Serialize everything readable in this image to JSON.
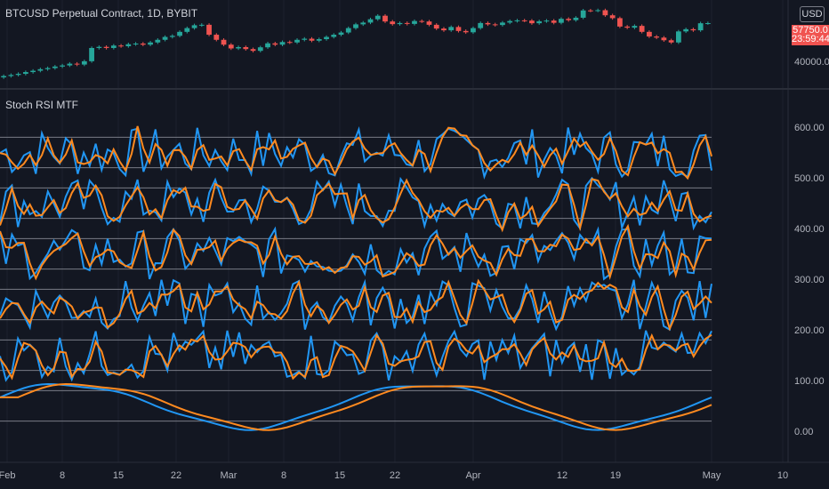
{
  "header": {
    "symbol_title": "BTCUSD Perpetual Contract, 1D, BYBIT",
    "currency_button": "USD"
  },
  "price_pane": {
    "last_price": "57750.0",
    "countdown": "23:59:44",
    "axis_label": "40000.0",
    "colors": {
      "up": "#26a69a",
      "down": "#ef5350"
    },
    "candles": [
      {
        "o": 33200,
        "c": 33800
      },
      {
        "o": 33800,
        "c": 34300
      },
      {
        "o": 34300,
        "c": 34800
      },
      {
        "o": 34800,
        "c": 35600
      },
      {
        "o": 35600,
        "c": 36200
      },
      {
        "o": 36200,
        "c": 36900
      },
      {
        "o": 36900,
        "c": 37400
      },
      {
        "o": 37400,
        "c": 38100
      },
      {
        "o": 38100,
        "c": 38600
      },
      {
        "o": 38600,
        "c": 39400
      },
      {
        "o": 39400,
        "c": 39000
      },
      {
        "o": 39000,
        "c": 40500
      },
      {
        "o": 40500,
        "c": 46500
      },
      {
        "o": 46500,
        "c": 47000
      },
      {
        "o": 47000,
        "c": 46500
      },
      {
        "o": 46500,
        "c": 47600
      },
      {
        "o": 47600,
        "c": 47300
      },
      {
        "o": 47300,
        "c": 48200
      },
      {
        "o": 48200,
        "c": 48500
      },
      {
        "o": 48500,
        "c": 48000
      },
      {
        "o": 48000,
        "c": 49000
      },
      {
        "o": 49000,
        "c": 50200
      },
      {
        "o": 50200,
        "c": 51500
      },
      {
        "o": 51500,
        "c": 52000
      },
      {
        "o": 52000,
        "c": 53800
      },
      {
        "o": 53800,
        "c": 55500
      },
      {
        "o": 55500,
        "c": 56800
      },
      {
        "o": 56800,
        "c": 57000
      },
      {
        "o": 57000,
        "c": 52500
      },
      {
        "o": 52500,
        "c": 50200
      },
      {
        "o": 50200,
        "c": 48000
      },
      {
        "o": 48000,
        "c": 46300
      },
      {
        "o": 46300,
        "c": 46900
      },
      {
        "o": 46900,
        "c": 46000
      },
      {
        "o": 46000,
        "c": 45200
      },
      {
        "o": 45200,
        "c": 46800
      },
      {
        "o": 46800,
        "c": 48600
      },
      {
        "o": 48600,
        "c": 48000
      },
      {
        "o": 48000,
        "c": 49200
      },
      {
        "o": 49200,
        "c": 49000
      },
      {
        "o": 49000,
        "c": 50200
      },
      {
        "o": 50200,
        "c": 50700
      },
      {
        "o": 50700,
        "c": 49800
      },
      {
        "o": 49800,
        "c": 50500
      },
      {
        "o": 50500,
        "c": 51500
      },
      {
        "o": 51500,
        "c": 52500
      },
      {
        "o": 52500,
        "c": 53500
      },
      {
        "o": 53500,
        "c": 55500
      },
      {
        "o": 55500,
        "c": 57200
      },
      {
        "o": 57200,
        "c": 58000
      },
      {
        "o": 58000,
        "c": 59500
      },
      {
        "o": 59500,
        "c": 61100
      },
      {
        "o": 61100,
        "c": 58500
      },
      {
        "o": 58500,
        "c": 57300
      },
      {
        "o": 57300,
        "c": 57800
      },
      {
        "o": 57800,
        "c": 57400
      },
      {
        "o": 57400,
        "c": 58700
      },
      {
        "o": 58700,
        "c": 58500
      },
      {
        "o": 58500,
        "c": 57000
      },
      {
        "o": 57000,
        "c": 55300
      },
      {
        "o": 55300,
        "c": 54500
      },
      {
        "o": 54500,
        "c": 56000
      },
      {
        "o": 56000,
        "c": 54200
      },
      {
        "o": 54200,
        "c": 53600
      },
      {
        "o": 53600,
        "c": 55500
      },
      {
        "o": 55500,
        "c": 57800
      },
      {
        "o": 57800,
        "c": 57200
      },
      {
        "o": 57200,
        "c": 56900
      },
      {
        "o": 56900,
        "c": 58000
      },
      {
        "o": 58000,
        "c": 58700
      },
      {
        "o": 58700,
        "c": 59000
      },
      {
        "o": 59000,
        "c": 58900
      },
      {
        "o": 58900,
        "c": 57700
      },
      {
        "o": 57700,
        "c": 58600
      },
      {
        "o": 58600,
        "c": 58900
      },
      {
        "o": 58900,
        "c": 57900
      },
      {
        "o": 57900,
        "c": 59700
      },
      {
        "o": 59700,
        "c": 59100
      },
      {
        "o": 59100,
        "c": 60200
      },
      {
        "o": 60200,
        "c": 63500
      },
      {
        "o": 63500,
        "c": 63400
      },
      {
        "o": 63400,
        "c": 63600
      },
      {
        "o": 63600,
        "c": 61300
      },
      {
        "o": 61300,
        "c": 60000
      },
      {
        "o": 60000,
        "c": 56200
      },
      {
        "o": 56200,
        "c": 55700
      },
      {
        "o": 55700,
        "c": 56500
      },
      {
        "o": 56500,
        "c": 53800
      },
      {
        "o": 53800,
        "c": 51700
      },
      {
        "o": 51700,
        "c": 51200
      },
      {
        "o": 51200,
        "c": 50000
      },
      {
        "o": 50000,
        "c": 49000
      },
      {
        "o": 49000,
        "c": 54000
      },
      {
        "o": 54000,
        "c": 55000
      },
      {
        "o": 55000,
        "c": 54500
      },
      {
        "o": 54500,
        "c": 57700
      },
      {
        "o": 57700,
        "c": 57750
      }
    ]
  },
  "indicator_pane": {
    "title": "Stoch RSI MTF",
    "k_color": "#2196f3",
    "d_color": "#ff8a1f",
    "y_labels": [
      "600.00",
      "500.00",
      "400.00",
      "300.00",
      "200.00",
      "100.00",
      "0.00"
    ]
  },
  "time_axis": {
    "labels": [
      "Feb",
      "8",
      "15",
      "22",
      "Mar",
      "8",
      "15",
      "22",
      "Apr",
      "12",
      "19",
      "May",
      "10"
    ]
  },
  "chart_data": [
    {
      "type": "candlestick",
      "title": "BTCUSD Perpetual Contract, 1D, BYBIT",
      "ylabel": "USD",
      "last_value": 57750.0
    },
    {
      "type": "line",
      "title": "Stoch RSI MTF",
      "ylim": [
        -40,
        640
      ],
      "yticks": [
        0,
        100,
        200,
        300,
        400,
        500,
        600
      ],
      "bands": [
        [
          20,
          80
        ],
        [
          120,
          180
        ],
        [
          220,
          280
        ],
        [
          320,
          380
        ],
        [
          420,
          480
        ],
        [
          520,
          580
        ]
      ],
      "series": [
        {
          "name": "",
          "color": "#2196f3"
        },
        {
          "name": "",
          "color": "#ff8a1f"
        }
      ]
    }
  ]
}
